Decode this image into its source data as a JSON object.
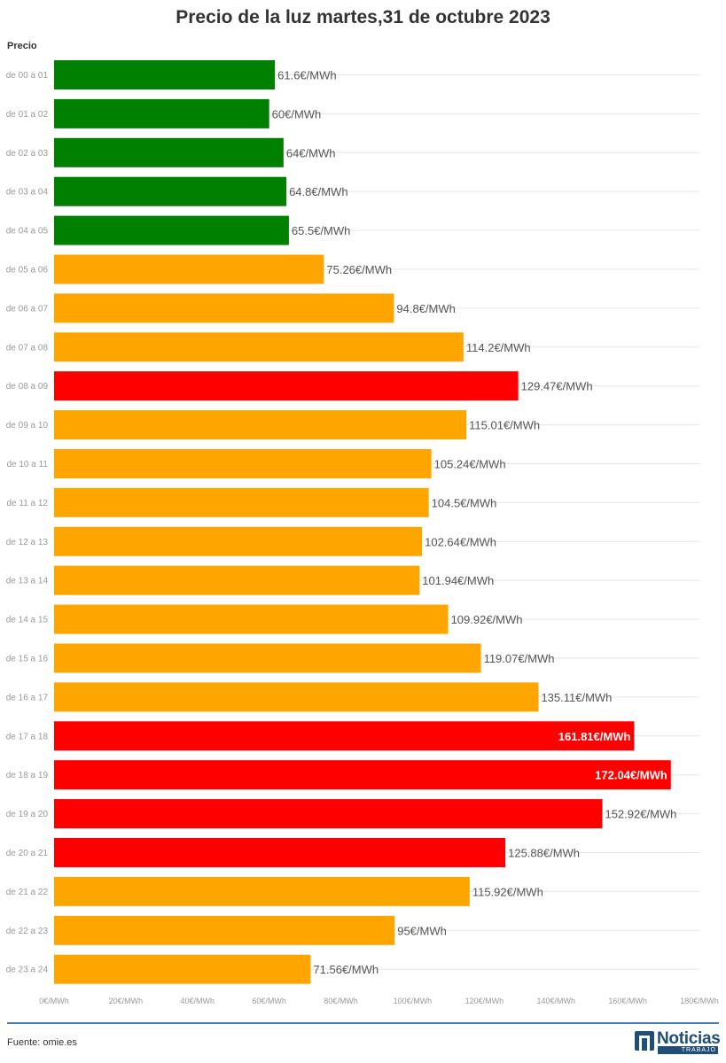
{
  "title": "Precio de la luz martes,31 de octubre 2023",
  "yaxis_title": "Precio",
  "source": "Fuente: omie.es",
  "logo": {
    "word": "Noticias",
    "sub": "TRABAJO"
  },
  "colors": {
    "low": "#008000",
    "mid": "#FFA500",
    "high": "#FF0000",
    "grid": "#e6e6e6",
    "axis_text": "#999999",
    "label_text": "#555555",
    "brand": "#1f4e79"
  },
  "chart_data": {
    "type": "bar",
    "orientation": "horizontal",
    "categories": [
      "de 00 a 01",
      "de 01 a 02",
      "de 02 a 03",
      "de 03 a 04",
      "de 04 a 05",
      "de 05 a 06",
      "de 06 a 07",
      "de 07 a 08",
      "de 08 a 09",
      "de 09 a 10",
      "de 10 a 11",
      "de 11 a 12",
      "de 12 a 13",
      "de 13 a 14",
      "de 14 a 15",
      "de 15 a 16",
      "de 16 a 17",
      "de 17 a 18",
      "de 18 a 19",
      "de 19 a 20",
      "de 20 a 21",
      "de 21 a 22",
      "de 22 a 23",
      "de 23 a 24"
    ],
    "values": [
      61.6,
      60,
      64,
      64.8,
      65.5,
      75.26,
      94.8,
      114.2,
      129.47,
      115.01,
      105.24,
      104.5,
      102.64,
      101.94,
      109.92,
      119.07,
      135.11,
      161.81,
      172.04,
      152.92,
      125.88,
      115.92,
      95,
      71.56
    ],
    "value_labels": [
      "61.6€/MWh",
      "60€/MWh",
      "64€/MWh",
      "64.8€/MWh",
      "65.5€/MWh",
      "75.26€/MWh",
      "94.8€/MWh",
      "114.2€/MWh",
      "129.47€/MWh",
      "115.01€/MWh",
      "105.24€/MWh",
      "104.5€/MWh",
      "102.64€/MWh",
      "101.94€/MWh",
      "109.92€/MWh",
      "119.07€/MWh",
      "135.11€/MWh",
      "161.81€/MWh",
      "172.04€/MWh",
      "152.92€/MWh",
      "125.88€/MWh",
      "115.92€/MWh",
      "95€/MWh",
      "71.56€/MWh"
    ],
    "bar_colors": [
      "low",
      "low",
      "low",
      "low",
      "low",
      "mid",
      "mid",
      "mid",
      "high",
      "mid",
      "mid",
      "mid",
      "mid",
      "mid",
      "mid",
      "mid",
      "mid",
      "high",
      "high",
      "high",
      "high",
      "mid",
      "mid",
      "mid"
    ],
    "labels_inside": [
      false,
      false,
      false,
      false,
      false,
      false,
      false,
      false,
      false,
      false,
      false,
      false,
      false,
      false,
      false,
      false,
      false,
      true,
      true,
      false,
      false,
      false,
      false,
      false
    ],
    "xlim": [
      0,
      180
    ],
    "xticks": [
      0,
      20,
      40,
      60,
      80,
      100,
      120,
      140,
      160,
      180
    ],
    "xtick_labels": [
      "0€/MWh",
      "20€/MWh",
      "40€/MWh",
      "60€/MWh",
      "80€/MWh",
      "100€/MWh",
      "120€/MWh",
      "140€/MWh",
      "160€/MWh",
      "180€/MWh"
    ],
    "ylabel": "Precio",
    "grid": true,
    "legend": "none"
  }
}
